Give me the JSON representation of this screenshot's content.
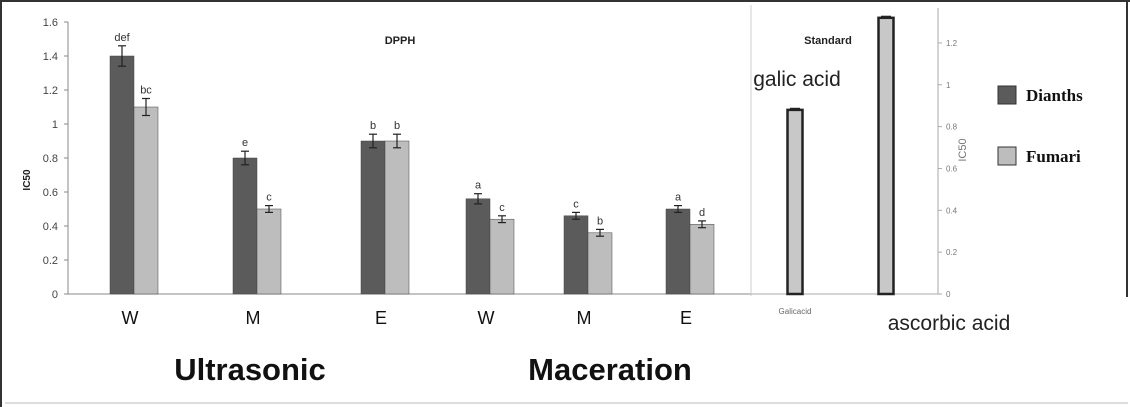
{
  "chart_data": [
    {
      "type": "bar",
      "title": "DPPH",
      "ylabel": "IC50",
      "xlabel": "",
      "ylim": [
        0,
        1.6
      ],
      "yticks": [
        "0",
        "0.2",
        "0.4",
        "0.6",
        "0.8",
        "1",
        "1.2",
        "1.4",
        "1.6"
      ],
      "categories": [
        "W",
        "M",
        "E",
        "W",
        "M",
        "E"
      ],
      "groups": [
        {
          "label": "Ultrasonic",
          "categories": [
            "W",
            "M",
            "E"
          ]
        },
        {
          "label": "Maceration",
          "categories": [
            "W",
            "M",
            "E"
          ]
        }
      ],
      "series": [
        {
          "name": "Dianths",
          "color": "#5b5b5b",
          "values": [
            1.4,
            0.8,
            0.9,
            0.56,
            0.46,
            0.5
          ],
          "errors": [
            0.06,
            0.04,
            0.04,
            0.03,
            0.02,
            0.02
          ],
          "letters": [
            "def",
            "e",
            "b",
            "a",
            "c",
            "a"
          ]
        },
        {
          "name": "Fumari",
          "color": "#bdbdbd",
          "values": [
            1.1,
            0.5,
            0.9,
            0.44,
            0.36,
            0.41
          ],
          "errors": [
            0.05,
            0.02,
            0.04,
            0.02,
            0.02,
            0.02
          ],
          "letters": [
            "bc",
            "c",
            "b",
            "c",
            "b",
            "d"
          ]
        }
      ],
      "legend": {
        "position": "right",
        "items": [
          "Dianths",
          "Fumari"
        ]
      },
      "grid": false
    },
    {
      "type": "bar",
      "title": "Standard",
      "ylabel": "IC50",
      "xlabel": "",
      "ylim": [
        0,
        1.3
      ],
      "yticks": [
        "0",
        "0.2",
        "0.4",
        "0.6",
        "0.8",
        "1",
        "1.2"
      ],
      "categories": [
        "Galicacid",
        "ascorbic acid"
      ],
      "values": [
        0.88,
        1.32
      ],
      "bar_labels": [
        "galic acid",
        "ascorbic acid"
      ],
      "color": "#c8c8c8",
      "grid": false
    }
  ]
}
